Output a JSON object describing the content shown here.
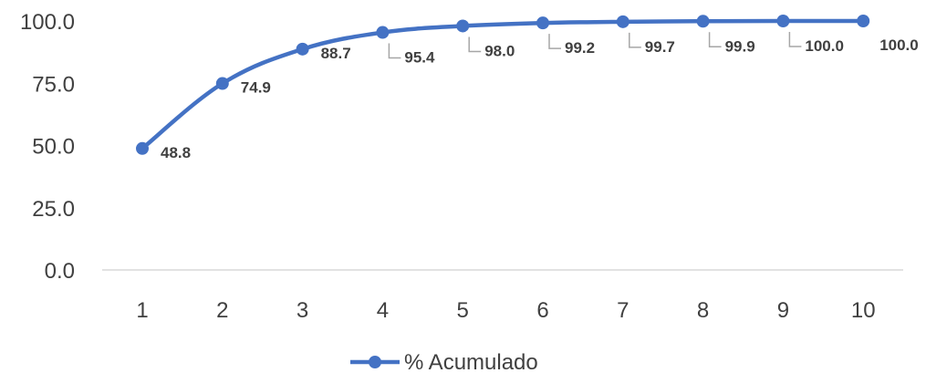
{
  "chart_data": {
    "type": "line",
    "categories": [
      "1",
      "2",
      "3",
      "4",
      "5",
      "6",
      "7",
      "8",
      "9",
      "10"
    ],
    "series": [
      {
        "name": "% Acumulado",
        "values": [
          48.8,
          74.9,
          88.7,
          95.4,
          98.0,
          99.2,
          99.7,
          99.9,
          100.0,
          100.0
        ],
        "labels": [
          "48.8",
          "74.9",
          "88.7",
          "95.4",
          "98.0",
          "99.2",
          "99.7",
          "99.9",
          "100.0",
          "100.0"
        ]
      }
    ],
    "yticks": [
      "0.0",
      "25.0",
      "50.0",
      "75.0",
      "100.0"
    ],
    "ylim": [
      0,
      100
    ],
    "grid": false,
    "legend": "bottom",
    "colors": {
      "series": "#4472C4",
      "text": "#404040",
      "axis": "#D9D9D9",
      "leader": "#A6A6A6"
    }
  }
}
